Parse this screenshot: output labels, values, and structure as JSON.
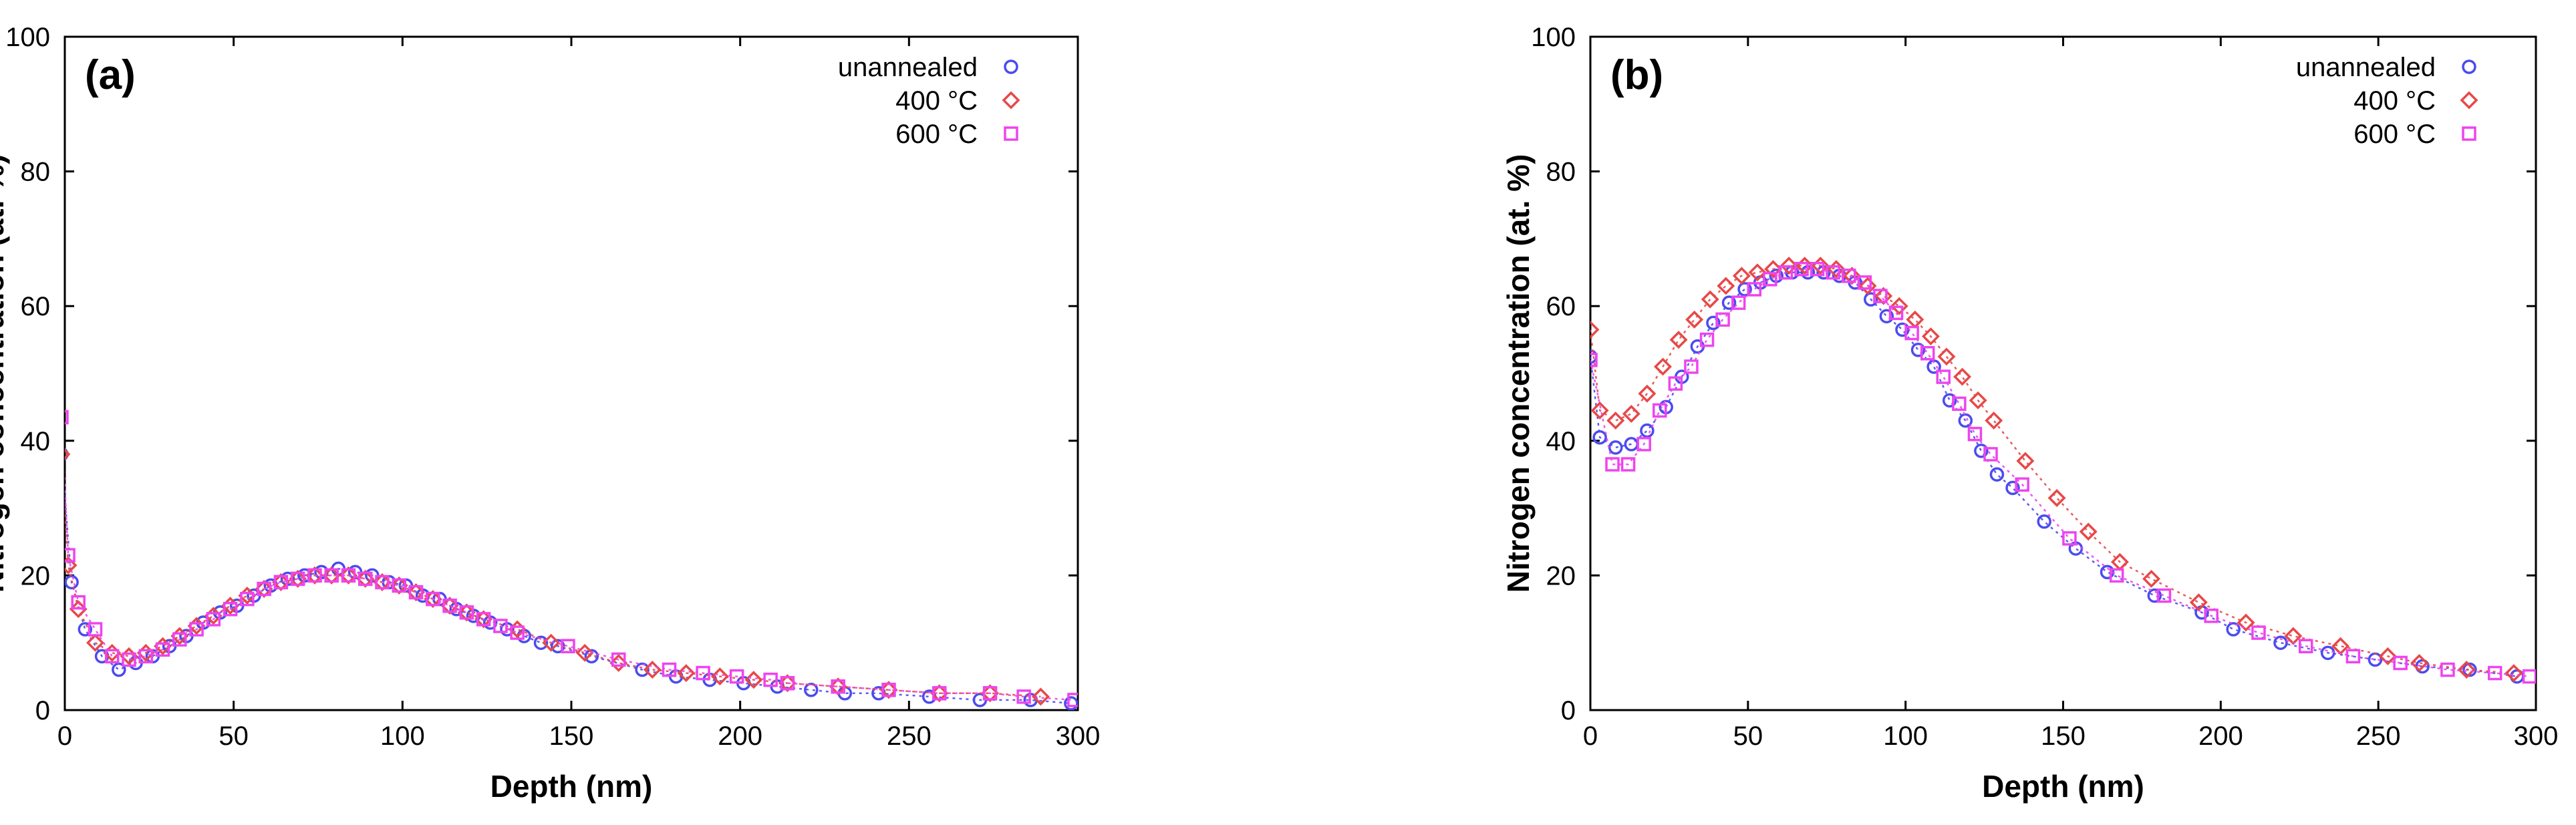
{
  "figure": {
    "panels": [
      "(a)",
      "(b)"
    ]
  },
  "chart_data": [
    {
      "type": "scatter",
      "panel_label": "(a)",
      "xlabel": "Depth (nm)",
      "ylabel": "Nitrogen concentration (at. %)",
      "xlim": [
        0,
        300
      ],
      "ylim": [
        0,
        100
      ],
      "xticks": [
        0,
        50,
        100,
        150,
        200,
        250,
        300
      ],
      "yticks": [
        0,
        20,
        40,
        60,
        80,
        100
      ],
      "grid": false,
      "legend_position": "top-right",
      "series": [
        {
          "name": "unannealed",
          "marker": "circle",
          "color": "#4b4bf0",
          "x": [
            -1,
            2,
            6,
            11,
            16,
            21,
            26,
            31,
            36,
            41,
            46,
            51,
            56,
            61,
            66,
            71,
            76,
            81,
            86,
            91,
            96,
            101,
            106,
            111,
            116,
            121,
            126,
            131,
            136,
            141,
            146,
            156,
            171,
            181,
            191,
            201,
            211,
            221,
            231,
            241,
            256,
            271,
            286,
            298
          ],
          "y": [
            38,
            19,
            12,
            8,
            6,
            7,
            8,
            9.5,
            11,
            13,
            14.5,
            15.5,
            17,
            18.5,
            19.5,
            20,
            20.5,
            21,
            20.5,
            20,
            19,
            18.5,
            17,
            16.5,
            15,
            14,
            13,
            12,
            11,
            10,
            9.5,
            8,
            6,
            5,
            4.5,
            4,
            3.5,
            3,
            2.5,
            2.5,
            2,
            1.5,
            1.5,
            1
          ]
        },
        {
          "name": "400 °C",
          "marker": "diamond",
          "color": "#e84848",
          "x": [
            -1,
            1,
            4,
            9,
            14,
            19,
            24,
            29,
            34,
            39,
            44,
            49,
            54,
            59,
            64,
            69,
            74,
            79,
            84,
            89,
            94,
            99,
            104,
            109,
            114,
            119,
            124,
            134,
            144,
            154,
            164,
            174,
            184,
            194,
            204,
            214,
            229,
            244,
            259,
            274,
            289
          ],
          "y": [
            38,
            21.5,
            15,
            10,
            8.5,
            8,
            8.5,
            9.5,
            11,
            12.5,
            14,
            15.5,
            17,
            18,
            19,
            19.5,
            20,
            20,
            20,
            19.5,
            19,
            18.5,
            17.5,
            16.5,
            15.5,
            14.5,
            13.5,
            12,
            10,
            8.5,
            7,
            6,
            5.5,
            5,
            4.5,
            4,
            3.5,
            3,
            2.5,
            2.5,
            2
          ]
        },
        {
          "name": "600 °C",
          "marker": "square",
          "color": "#ee44ee",
          "x": [
            -1,
            1,
            4,
            9,
            14,
            19,
            24,
            29,
            34,
            39,
            44,
            49,
            54,
            59,
            64,
            69,
            74,
            79,
            84,
            89,
            94,
            99,
            104,
            109,
            114,
            119,
            124,
            129,
            134,
            149,
            164,
            179,
            189,
            199,
            209,
            214,
            229,
            244,
            259,
            274,
            284,
            299
          ],
          "y": [
            43.5,
            23,
            16,
            12,
            8,
            7.5,
            8,
            9,
            10.5,
            12,
            13.5,
            15,
            16.5,
            18,
            19,
            19.5,
            20,
            20,
            20,
            19.5,
            19,
            18.5,
            17.5,
            16.5,
            15.5,
            14.5,
            13.5,
            12.5,
            11.5,
            9.5,
            7.5,
            6,
            5.5,
            5,
            4.5,
            4,
            3.5,
            3,
            2.5,
            2.5,
            2,
            1.5
          ]
        }
      ]
    },
    {
      "type": "scatter",
      "panel_label": "(b)",
      "xlabel": "Depth (nm)",
      "ylabel": "Nitrogen concentration (at. %)",
      "xlim": [
        0,
        300
      ],
      "ylim": [
        0,
        100
      ],
      "xticks": [
        0,
        50,
        100,
        150,
        200,
        250,
        300
      ],
      "yticks": [
        0,
        20,
        40,
        60,
        80,
        100
      ],
      "grid": false,
      "legend_position": "top-right",
      "series": [
        {
          "name": "unannealed",
          "marker": "circle",
          "color": "#4b4bf0",
          "x": [
            0,
            3,
            8,
            13,
            18,
            24,
            29,
            34,
            39,
            44,
            49,
            54,
            59,
            64,
            69,
            74,
            79,
            84,
            89,
            94,
            99,
            104,
            109,
            114,
            119,
            124,
            129,
            134,
            144,
            154,
            164,
            179,
            194,
            204,
            219,
            234,
            249,
            264,
            279,
            294
          ],
          "y": [
            52.5,
            40.5,
            39,
            39.5,
            41.5,
            45,
            49.5,
            54,
            57.5,
            60.5,
            62.5,
            63.5,
            64.5,
            65,
            65,
            65,
            64.5,
            63.5,
            61,
            58.5,
            56.5,
            53.5,
            51,
            46,
            43,
            38.5,
            35,
            33,
            28,
            24,
            20.5,
            17,
            14.5,
            12,
            10,
            8.5,
            7.5,
            6.5,
            6,
            5
          ]
        },
        {
          "name": "400 °C",
          "marker": "diamond",
          "color": "#e84848",
          "x": [
            0,
            3,
            8,
            13,
            18,
            23,
            28,
            33,
            38,
            43,
            48,
            53,
            58,
            63,
            68,
            73,
            78,
            83,
            88,
            93,
            98,
            103,
            108,
            113,
            118,
            123,
            128,
            138,
            148,
            158,
            168,
            178,
            193,
            208,
            223,
            238,
            253,
            263,
            278,
            293
          ],
          "y": [
            56.5,
            44.5,
            43,
            44,
            47,
            51,
            55,
            58,
            61,
            63,
            64.5,
            65,
            65.5,
            66,
            66,
            66,
            65.5,
            64.5,
            63,
            61.5,
            60,
            58,
            55.5,
            52.5,
            49.5,
            46,
            43,
            37,
            31.5,
            26.5,
            22,
            19.5,
            16,
            13,
            11,
            9.5,
            8,
            7,
            6,
            5.5
          ]
        },
        {
          "name": "600 °C",
          "marker": "square",
          "color": "#ee44ee",
          "x": [
            0,
            7,
            12,
            17,
            22,
            27,
            32,
            37,
            42,
            47,
            52,
            57,
            62,
            67,
            72,
            77,
            82,
            87,
            92,
            97,
            102,
            107,
            112,
            117,
            122,
            127,
            137,
            152,
            167,
            182,
            197,
            212,
            227,
            242,
            257,
            272,
            287,
            298
          ],
          "y": [
            52,
            36.5,
            36.5,
            39.5,
            44.5,
            48.5,
            51,
            55,
            58,
            60.5,
            62.5,
            64,
            65,
            65.5,
            65.5,
            65,
            64.5,
            63.5,
            61.5,
            59,
            56,
            53,
            49.5,
            45.5,
            41,
            38,
            33.5,
            25.5,
            20,
            17,
            14,
            11.5,
            9.5,
            8,
            7,
            6,
            5.5,
            5
          ]
        }
      ]
    }
  ]
}
